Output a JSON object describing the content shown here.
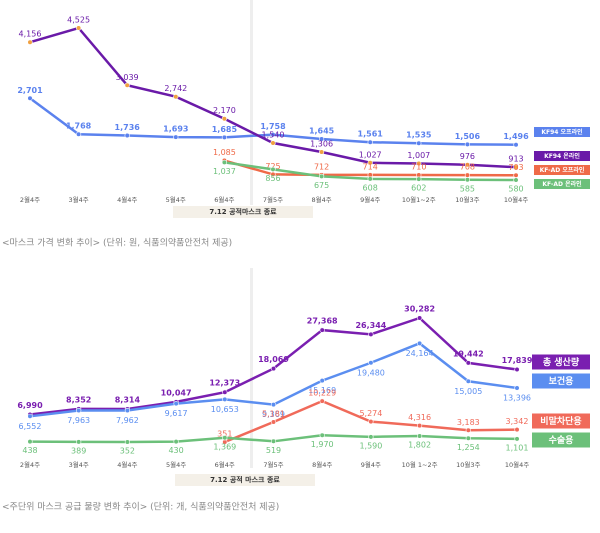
{
  "chart_data": [
    {
      "type": "line",
      "categories": [
        "2월4주",
        "3월4주",
        "4월4주",
        "5월4주",
        "6월4주",
        "7월5주",
        "8월4주",
        "9월4주",
        "10월1~2주",
        "10월3주",
        "10월4주"
      ],
      "series": [
        {
          "name": "KF94 오프라인",
          "color": "#5b82ee",
          "values": [
            2701,
            1768,
            1736,
            1693,
            1685,
            1758,
            1645,
            1561,
            1535,
            1506,
            1496
          ],
          "value_labels": [
            "2,701",
            "1,768",
            "1,736",
            "1,693",
            "1,685",
            "1,758",
            "1,645",
            "1,561",
            "1,535",
            "1,506",
            "1,496"
          ]
        },
        {
          "name": "KF94 온라인",
          "color": "#6a1aa8",
          "values": [
            4156,
            4525,
            3039,
            2742,
            2170,
            1540,
            1306,
            1027,
            1007,
            976,
            913
          ],
          "value_labels": [
            "4,156",
            "4,525",
            "3,039",
            "2,742",
            "2,170",
            "1,540",
            "1,306",
            "1,027",
            "1,007",
            "976",
            "913"
          ]
        },
        {
          "name": "KF-AD 오프라인",
          "color": "#ef6a48",
          "values": [
            null,
            null,
            null,
            null,
            1085,
            725,
            712,
            714,
            710,
            708,
            703
          ],
          "value_labels": [
            null,
            null,
            null,
            null,
            "1,085",
            "725",
            "712",
            "714",
            "710",
            "708",
            "703"
          ]
        },
        {
          "name": "KF-AD 온라인",
          "color": "#6cc07a",
          "values": [
            null,
            null,
            null,
            null,
            1037,
            856,
            675,
            608,
            602,
            585,
            580
          ],
          "value_labels": [
            null,
            null,
            null,
            null,
            "1,037",
            "856",
            "675",
            "608",
            "602",
            "585",
            "580"
          ]
        }
      ],
      "annotation": "7.12 공적마스크 종료",
      "caption": "<마스크 가격 변화 추이> (단위: 원, 식품의약품안전처 제공)"
    },
    {
      "type": "line",
      "categories": [
        "2월4주",
        "3월4주",
        "4월4주",
        "5월4주",
        "6월4주",
        "7월5주",
        "8월4주",
        "9월4주",
        "10월 1~2주",
        "10월3주",
        "10월4주"
      ],
      "series": [
        {
          "name": "총 생산량",
          "color": "#7a1fb0",
          "values": [
            6990,
            8352,
            8314,
            10047,
            12373,
            18069,
            27368,
            26344,
            30282,
            19442,
            17839
          ],
          "value_labels": [
            "6,990",
            "8,352",
            "8,314",
            "10,047",
            "12,373",
            "18,069",
            "27,368",
            "26,344",
            "30,282",
            "19,442",
            "17,839"
          ]
        },
        {
          "name": "보건용",
          "color": "#5b8ef0",
          "values": [
            6552,
            7963,
            7962,
            9617,
            10653,
            9369,
            15169,
            19480,
            24164,
            15005,
            13396
          ],
          "value_labels": [
            "6,552",
            "7,963",
            "7,962",
            "9,617",
            "10,653",
            "9,369",
            "15,169",
            "19,480",
            "24,164",
            "15,005",
            "13,396"
          ]
        },
        {
          "name": "비말차단용",
          "color": "#f06a5a",
          "values": [
            null,
            null,
            null,
            null,
            351,
            5181,
            10229,
            5274,
            4316,
            3183,
            3342
          ],
          "value_labels": [
            null,
            null,
            null,
            null,
            "351",
            "5,181",
            "10,229",
            "5,274",
            "4,316",
            "3,183",
            "3,342"
          ]
        },
        {
          "name": "수술용",
          "color": "#6cc07a",
          "values": [
            438,
            389,
            352,
            430,
            1369,
            519,
            1970,
            1590,
            1802,
            1254,
            1101
          ],
          "value_labels": [
            "438",
            "389",
            "352",
            "430",
            "1,369",
            "519",
            "1,970",
            "1,590",
            "1,802",
            "1,254",
            "1,101"
          ]
        }
      ],
      "annotation": "7.12 공적 마스크 종료",
      "caption": "<주단위 마스크 공급 물량 변화 추이> (단위: 개, 식품의약품안전처 제공)"
    }
  ]
}
